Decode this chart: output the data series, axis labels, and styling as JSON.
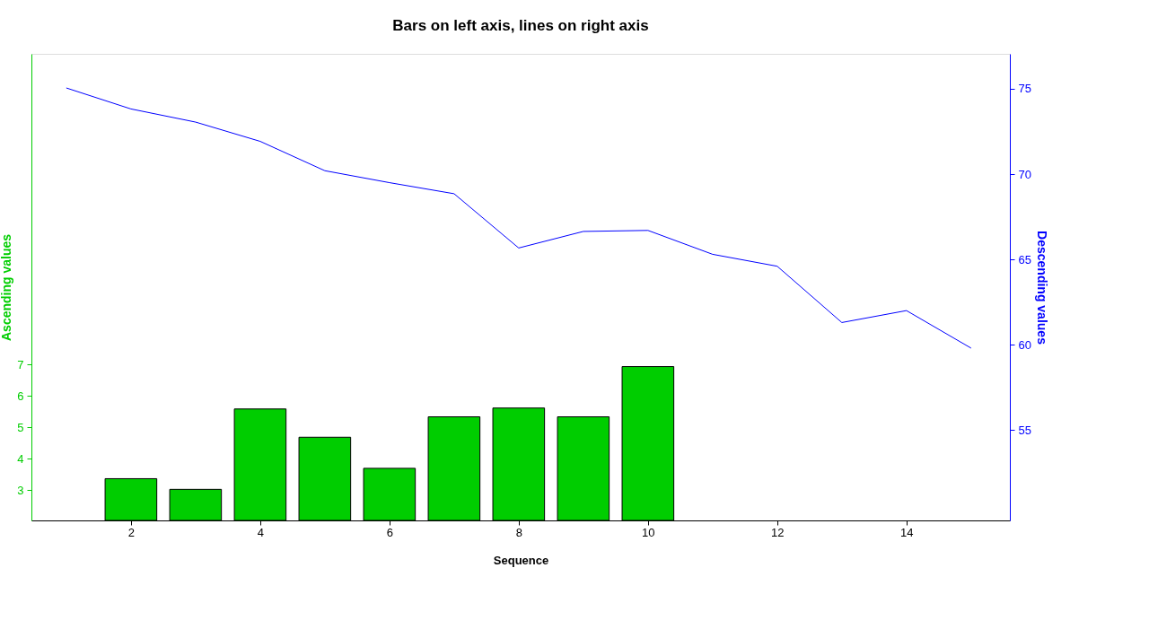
{
  "chart_data": {
    "type": "bar",
    "title": "Bars on left axis, lines on right axis",
    "xlabel": "Sequence",
    "ylabel": "Ascending values",
    "y2label": "Descending values",
    "xlim": [
      0.46,
      15.6
    ],
    "xticks": [
      2,
      4,
      6,
      8,
      10,
      12,
      14
    ],
    "ylim": [
      2.04,
      16.9
    ],
    "yticks": [
      3,
      4,
      5,
      6,
      7
    ],
    "y2lim": [
      49.7,
      77.05
    ],
    "y2ticks": [
      55,
      60,
      65,
      70,
      75
    ],
    "grid": false,
    "series": [
      {
        "color": "#00cd00",
        "x": [
          2,
          3,
          4,
          5,
          6,
          7,
          8,
          9,
          10
        ],
        "values": [
          3.37,
          3.03,
          5.59,
          4.69,
          3.7,
          5.34,
          5.62,
          5.34,
          6.94
        ]
      },
      {
        "type": "line",
        "axis": "y2",
        "color": "#0000ff",
        "x": [
          1,
          2,
          3,
          4,
          5,
          6,
          7,
          8,
          9,
          10,
          11,
          12,
          13,
          14,
          15
        ],
        "values": [
          75.05,
          73.82,
          73.05,
          71.92,
          70.2,
          69.5,
          68.85,
          65.67,
          66.64,
          66.7,
          65.3,
          64.6,
          61.3,
          62.0,
          59.8
        ]
      }
    ]
  }
}
